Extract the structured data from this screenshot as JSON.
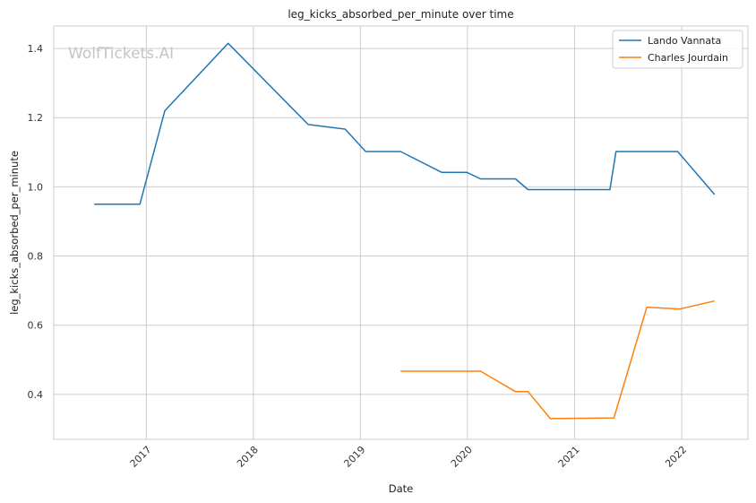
{
  "chart_data": {
    "type": "line",
    "title": "leg_kicks_absorbed_per_minute over time",
    "xlabel": "Date",
    "ylabel": "leg_kicks_absorbed_per_minute",
    "xlim": [
      "2016-02-20",
      "2022-08-15"
    ],
    "ylim": [
      0.27,
      1.465
    ],
    "x_ticks": [
      "2017",
      "2018",
      "2019",
      "2020",
      "2021",
      "2022"
    ],
    "y_ticks": [
      0.4,
      0.6,
      0.8,
      1.0,
      1.2,
      1.4
    ],
    "y_tick_labels": [
      "0.4",
      "0.6",
      "0.8",
      "1.0",
      "1.2",
      "1.4"
    ],
    "grid": true,
    "legend_position": "top-right",
    "watermark": "WolfTickets.AI",
    "series": [
      {
        "name": "Lando Vannata",
        "color": "#1f77b4",
        "points": [
          {
            "x": "2016-07-07",
            "y": 0.95
          },
          {
            "x": "2016-12-10",
            "y": 0.95
          },
          {
            "x": "2017-03-05",
            "y": 1.22
          },
          {
            "x": "2017-10-07",
            "y": 1.415
          },
          {
            "x": "2018-07-07",
            "y": 1.18
          },
          {
            "x": "2018-11-10",
            "y": 1.167
          },
          {
            "x": "2019-01-19",
            "y": 1.102
          },
          {
            "x": "2019-05-18",
            "y": 1.102
          },
          {
            "x": "2019-10-05",
            "y": 1.042
          },
          {
            "x": "2019-12-30",
            "y": 1.042
          },
          {
            "x": "2020-02-15",
            "y": 1.023
          },
          {
            "x": "2020-06-13",
            "y": 1.023
          },
          {
            "x": "2020-07-26",
            "y": 0.992
          },
          {
            "x": "2021-02-13",
            "y": 0.992
          },
          {
            "x": "2021-05-01",
            "y": 0.992
          },
          {
            "x": "2021-05-22",
            "y": 1.102
          },
          {
            "x": "2021-12-18",
            "y": 1.102
          },
          {
            "x": "2022-04-23",
            "y": 0.978
          }
        ]
      },
      {
        "name": "Charles Jourdain",
        "color": "#ff7f0e",
        "points": [
          {
            "x": "2019-05-18",
            "y": 0.467
          },
          {
            "x": "2020-02-15",
            "y": 0.467
          },
          {
            "x": "2020-06-13",
            "y": 0.408
          },
          {
            "x": "2020-07-26",
            "y": 0.408
          },
          {
            "x": "2020-10-10",
            "y": 0.33
          },
          {
            "x": "2021-05-15",
            "y": 0.332
          },
          {
            "x": "2021-09-04",
            "y": 0.652
          },
          {
            "x": "2021-12-25",
            "y": 0.647
          },
          {
            "x": "2022-04-23",
            "y": 0.67
          }
        ]
      }
    ]
  }
}
